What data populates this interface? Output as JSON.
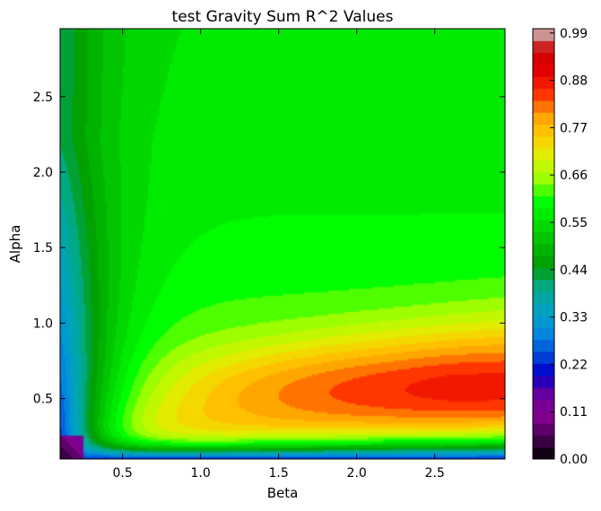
{
  "chart_data": {
    "type": "heatmap",
    "title": "test Gravity Sum R^2 Values",
    "xlabel": "Beta",
    "ylabel": "Alpha",
    "xlim": [
      0.1,
      2.95
    ],
    "ylim": [
      0.1,
      2.95
    ],
    "x_ticks": [
      0.5,
      1.0,
      1.5,
      2.0,
      2.5
    ],
    "x_tick_labels": [
      "0.5",
      "1.0",
      "1.5",
      "2.0",
      "2.5"
    ],
    "y_ticks": [
      0.5,
      1.0,
      1.5,
      2.0,
      2.5
    ],
    "y_tick_labels": [
      "0.5",
      "1.0",
      "1.5",
      "2.0",
      "2.5"
    ],
    "grid": false,
    "colormap": "nipy_spectral",
    "colorbar": {
      "range": [
        0.0,
        1.0
      ],
      "ticks": [
        0.0,
        0.11,
        0.22,
        0.33,
        0.44,
        0.55,
        0.66,
        0.77,
        0.88,
        0.99
      ],
      "tick_labels": [
        "0.00",
        "0.11",
        "0.22",
        "0.33",
        "0.44",
        "0.55",
        "0.66",
        "0.77",
        "0.88",
        "0.99"
      ]
    },
    "colormap_stops": [
      [
        0.0,
        "#000000"
      ],
      [
        0.05,
        "#470052"
      ],
      [
        0.1,
        "#83008f"
      ],
      [
        0.15,
        "#6a009e"
      ],
      [
        0.2,
        "#0000c8"
      ],
      [
        0.25,
        "#0055dd"
      ],
      [
        0.3,
        "#0090dd"
      ],
      [
        0.35,
        "#00a4bb"
      ],
      [
        0.4,
        "#00aa88"
      ],
      [
        0.45,
        "#009c00"
      ],
      [
        0.5,
        "#00bb00"
      ],
      [
        0.55,
        "#00de00"
      ],
      [
        0.6,
        "#00ff00"
      ],
      [
        0.65,
        "#99ff00"
      ],
      [
        0.7,
        "#dbf200"
      ],
      [
        0.75,
        "#ffcc00"
      ],
      [
        0.8,
        "#ffa000"
      ],
      [
        0.85,
        "#ff3000"
      ],
      [
        0.9,
        "#e50000"
      ],
      [
        0.95,
        "#cc0000"
      ],
      [
        1.0,
        "#cccccc"
      ]
    ],
    "levels": 36,
    "features": {
      "peak": {
        "beta": 2.6,
        "alpha": 0.55,
        "value": 0.88
      },
      "upper_plateau": {
        "beta_range": [
          0.5,
          2.95
        ],
        "alpha_range": [
          1.5,
          2.95
        ],
        "value": 0.58
      },
      "left_edge_minimum": {
        "beta": 0.1,
        "alpha": 0.1,
        "value": 0.02
      }
    }
  }
}
